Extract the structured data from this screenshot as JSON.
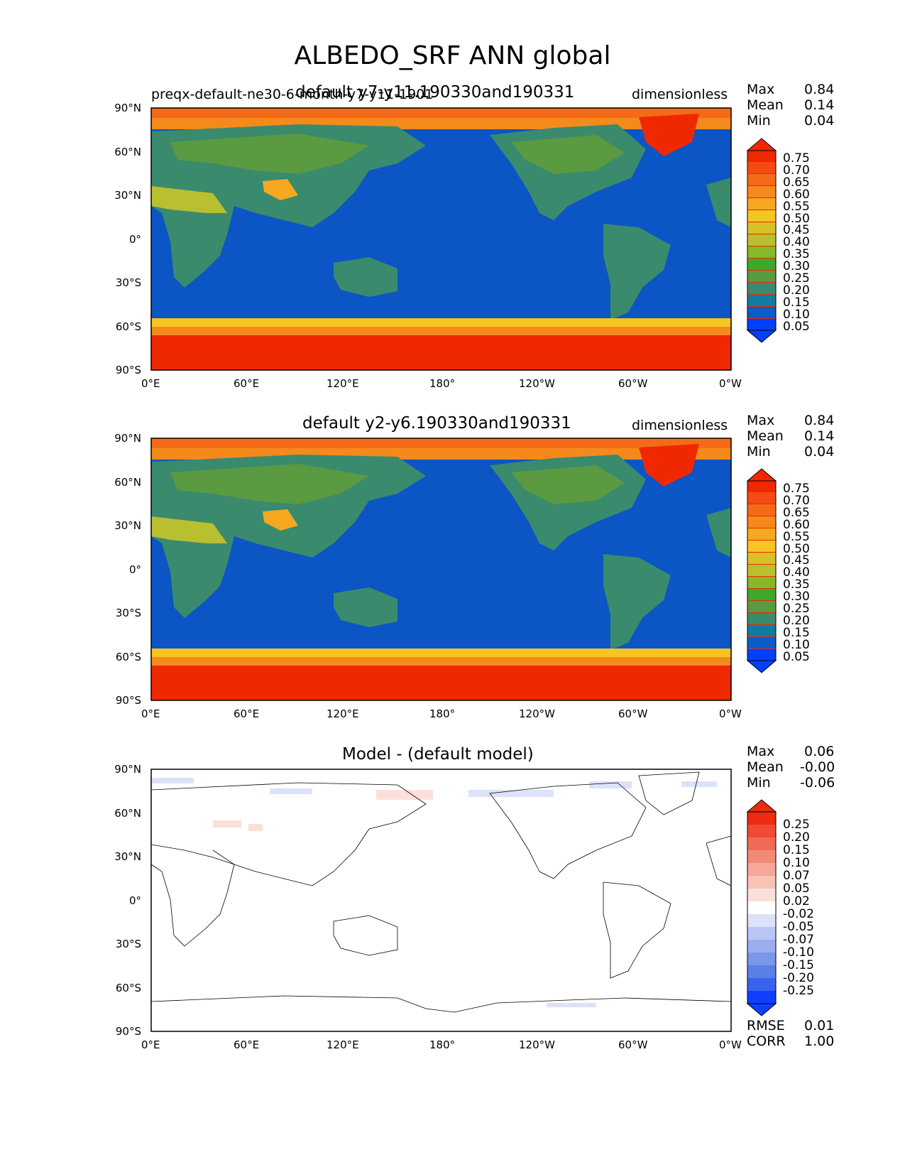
{
  "figure": {
    "title": "ALBEDO_SRF ANN global"
  },
  "x_ticks": [
    "0°E",
    "60°E",
    "120°E",
    "180°",
    "120°W",
    "60°W",
    "0°W"
  ],
  "y_ticks": [
    "90°N",
    "60°N",
    "30°N",
    "0°",
    "30°S",
    "60°S",
    "90°S"
  ],
  "colors": {
    "levels": [
      "#0040ff",
      "#0a5cc8",
      "#127ca0",
      "#3a8a6e",
      "#5a9a40",
      "#3fa82a",
      "#86b82a",
      "#b8c030",
      "#d8c028",
      "#f5c522",
      "#f5a820",
      "#f58a1c",
      "#f56a18",
      "#f54a14",
      "#f02800"
    ],
    "diff": [
      "#1040ff",
      "#3a62f0",
      "#5a80e8",
      "#7a98e8",
      "#9aaeef",
      "#bac6f5",
      "#dce2fa",
      "#ffffff",
      "#fbe0da",
      "#f8c2b5",
      "#f5a898",
      "#f28a78",
      "#f06a55",
      "#ee4a34",
      "#ee2a10"
    ],
    "ocean": "#0b55c5",
    "polar": "#f02800"
  },
  "panels": [
    {
      "left_title": "preqx-default-ne30-6-month-y7-y11-1901",
      "center_title": "default y7-y11.190330and190331",
      "units": "dimensionless",
      "stats": {
        "max_label": "Max",
        "max": "0.84",
        "mean_label": "Mean",
        "mean": "0.14",
        "min_label": "Min",
        "min": "0.04"
      },
      "colorbar_labels": [
        "0.75",
        "0.70",
        "0.65",
        "0.60",
        "0.55",
        "0.50",
        "0.45",
        "0.40",
        "0.35",
        "0.30",
        "0.25",
        "0.20",
        "0.15",
        "0.10",
        "0.05"
      ]
    },
    {
      "left_title": "",
      "center_title": "default y2-y6.190330and190331",
      "units": "dimensionless",
      "stats": {
        "max_label": "Max",
        "max": "0.84",
        "mean_label": "Mean",
        "mean": "0.14",
        "min_label": "Min",
        "min": "0.04"
      },
      "colorbar_labels": [
        "0.75",
        "0.70",
        "0.65",
        "0.60",
        "0.55",
        "0.50",
        "0.45",
        "0.40",
        "0.35",
        "0.30",
        "0.25",
        "0.20",
        "0.15",
        "0.10",
        "0.05"
      ]
    },
    {
      "left_title": "",
      "center_title": "Model - (default model)",
      "units": "",
      "stats": {
        "max_label": "Max",
        "max": "0.06",
        "mean_label": "Mean",
        "mean": "-0.00",
        "min_label": "Min",
        "min": "-0.06"
      },
      "colorbar_labels": [
        "0.25",
        "0.20",
        "0.15",
        "0.10",
        "0.07",
        "0.05",
        "0.02",
        "-0.02",
        "-0.05",
        "-0.07",
        "-0.10",
        "-0.15",
        "-0.20",
        "-0.25"
      ],
      "extra_stats": {
        "rmse_label": "RMSE",
        "rmse": "0.01",
        "corr_label": "CORR",
        "corr": "1.00"
      }
    }
  ]
}
